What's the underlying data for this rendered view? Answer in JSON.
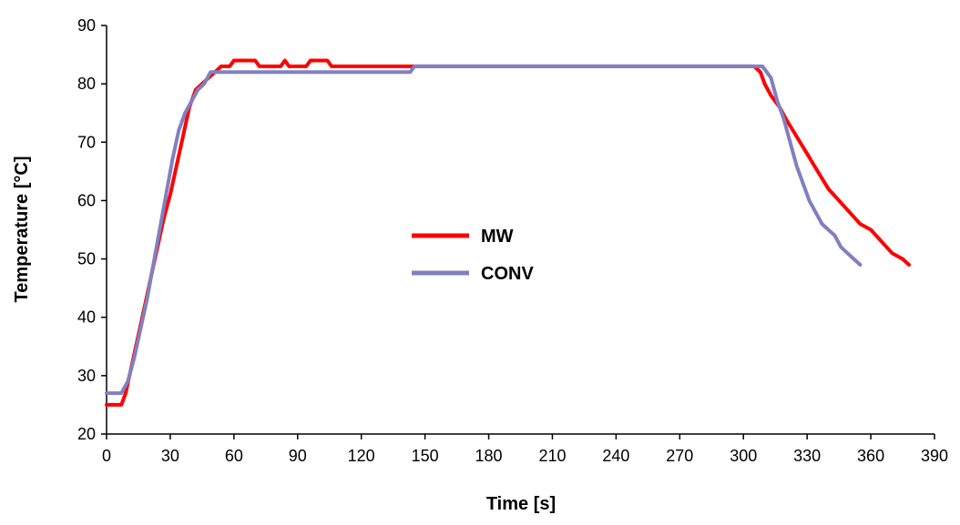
{
  "chart_data": {
    "type": "line",
    "title": "",
    "xlabel": "Time [s]",
    "ylabel": "Temperature [°C]",
    "xlim": [
      0,
      390
    ],
    "ylim": [
      20,
      90
    ],
    "xticks": [
      "0",
      "30",
      "60",
      "90",
      "120",
      "150",
      "180",
      "210",
      "240",
      "270",
      "300",
      "330",
      "360",
      "390"
    ],
    "yticks": [
      "20",
      "30",
      "40",
      "50",
      "60",
      "70",
      "80",
      "90"
    ],
    "grid": false,
    "legend_position": "center",
    "series": [
      {
        "name": "MW",
        "color": "#ff0000",
        "points": [
          [
            0,
            25
          ],
          [
            7,
            25
          ],
          [
            9,
            27
          ],
          [
            12,
            32
          ],
          [
            15,
            37
          ],
          [
            18,
            42
          ],
          [
            21,
            47
          ],
          [
            24,
            52
          ],
          [
            27,
            57
          ],
          [
            30,
            61
          ],
          [
            33,
            66
          ],
          [
            36,
            71
          ],
          [
            39,
            76
          ],
          [
            42,
            79
          ],
          [
            45,
            80
          ],
          [
            48,
            81
          ],
          [
            51,
            82
          ],
          [
            54,
            83
          ],
          [
            58,
            83
          ],
          [
            60,
            84
          ],
          [
            70,
            84
          ],
          [
            72,
            83
          ],
          [
            82,
            83
          ],
          [
            84,
            84
          ],
          [
            86,
            83
          ],
          [
            94,
            83
          ],
          [
            96,
            84
          ],
          [
            104,
            84
          ],
          [
            106,
            83
          ],
          [
            143,
            83
          ],
          [
            305,
            83
          ],
          [
            308,
            82
          ],
          [
            310,
            80
          ],
          [
            313,
            78
          ],
          [
            317,
            76
          ],
          [
            320,
            74
          ],
          [
            325,
            71
          ],
          [
            330,
            68
          ],
          [
            335,
            65
          ],
          [
            340,
            62
          ],
          [
            345,
            60
          ],
          [
            350,
            58
          ],
          [
            355,
            56
          ],
          [
            360,
            55
          ],
          [
            365,
            53
          ],
          [
            370,
            51
          ],
          [
            375,
            50
          ],
          [
            378,
            49
          ]
        ]
      },
      {
        "name": "CONV",
        "color": "#8080c0",
        "points": [
          [
            0,
            27
          ],
          [
            7,
            27
          ],
          [
            10,
            29
          ],
          [
            13,
            33
          ],
          [
            16,
            38
          ],
          [
            19,
            43
          ],
          [
            22,
            49
          ],
          [
            25,
            55
          ],
          [
            28,
            61
          ],
          [
            31,
            67
          ],
          [
            34,
            72
          ],
          [
            37,
            75
          ],
          [
            40,
            77
          ],
          [
            43,
            79
          ],
          [
            46,
            80
          ],
          [
            49,
            82
          ],
          [
            141,
            82
          ],
          [
            143,
            82
          ],
          [
            145,
            83
          ],
          [
            309,
            83
          ],
          [
            311,
            82
          ],
          [
            313,
            81
          ],
          [
            316,
            77
          ],
          [
            319,
            74
          ],
          [
            322,
            70
          ],
          [
            325,
            66
          ],
          [
            328,
            63
          ],
          [
            331,
            60
          ],
          [
            334,
            58
          ],
          [
            337,
            56
          ],
          [
            340,
            55
          ],
          [
            343,
            54
          ],
          [
            346,
            52
          ],
          [
            349,
            51
          ],
          [
            352,
            50
          ],
          [
            355,
            49
          ]
        ]
      }
    ]
  }
}
